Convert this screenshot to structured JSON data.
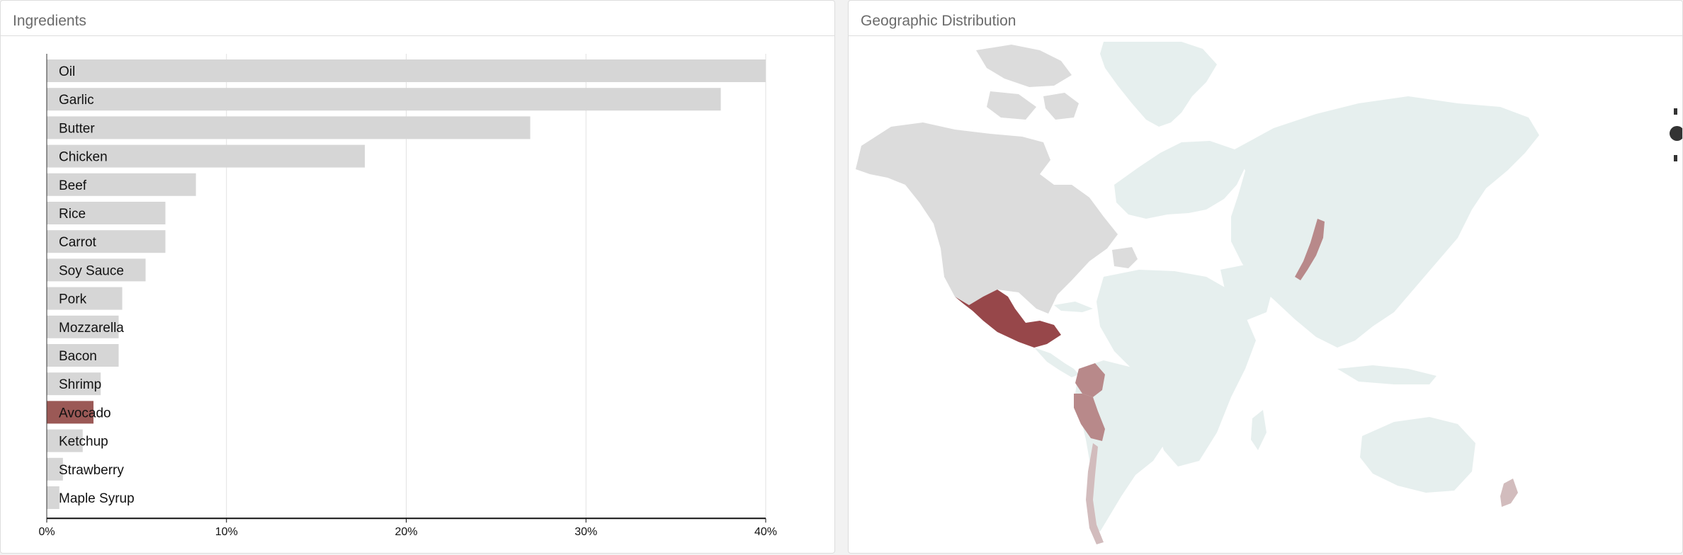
{
  "panels": {
    "left_title": "Ingredients",
    "right_title": "Geographic Distribution"
  },
  "colors": {
    "bar_default": "#d6d6d6",
    "bar_highlight": "#9b5956",
    "land_default": "#e6efee",
    "land_neutral": "#dcdcdc",
    "country_high": "#97474a",
    "country_mid": "#b8898a",
    "country_low": "#d2bcbd"
  },
  "chart_data": {
    "type": "bar",
    "orientation": "horizontal",
    "title": "Ingredients",
    "categories": [
      "Oil",
      "Garlic",
      "Butter",
      "Chicken",
      "Beef",
      "Rice",
      "Carrot",
      "Soy Sauce",
      "Pork",
      "Mozzarella",
      "Bacon",
      "Shrimp",
      "Avocado",
      "Ketchup",
      "Strawberry",
      "Maple Syrup"
    ],
    "values": [
      40.1,
      37.5,
      26.9,
      17.7,
      8.3,
      6.6,
      6.6,
      5.5,
      4.2,
      4.0,
      4.0,
      3.0,
      2.6,
      2.0,
      0.9,
      0.7
    ],
    "highlighted": "Avocado",
    "xlim": [
      0,
      40
    ],
    "xticks": [
      "0%",
      "10%",
      "20%",
      "30%",
      "40%"
    ],
    "grid": true
  },
  "map": {
    "highlighted_countries": [
      {
        "name": "Mexico",
        "level": "high"
      },
      {
        "name": "Colombia",
        "level": "mid"
      },
      {
        "name": "Peru",
        "level": "mid"
      },
      {
        "name": "Japan",
        "level": "mid"
      },
      {
        "name": "Chile",
        "level": "low"
      },
      {
        "name": "New Zealand",
        "level": "low"
      }
    ],
    "neutral_regions": [
      "North America",
      "Greenland",
      "Spain",
      "South America"
    ]
  }
}
